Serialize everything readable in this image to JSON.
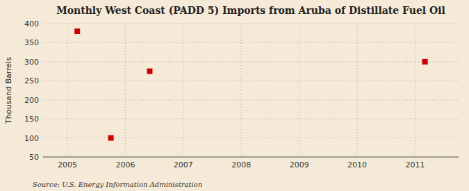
{
  "chart_data": {
    "type": "scatter",
    "title": "Monthly West Coast (PADD 5) Imports from Aruba of Distillate Fuel Oil",
    "y_label": "Thousand Barrels",
    "annotations": [
      "Source: U.S. Energy Information Administration"
    ],
    "x": [
      2005.17,
      2005.75,
      2006.42,
      2011.17
    ],
    "values": [
      380,
      100,
      275,
      300
    ],
    "color": "#cc0000",
    "marker": "square",
    "xlim": [
      2004.58,
      2011.75
    ],
    "ylim": [
      50,
      400
    ],
    "xticks": [
      2005,
      2006,
      2007,
      2008,
      2009,
      2010,
      2011
    ],
    "yticks": [
      50,
      100,
      150,
      200,
      250,
      300,
      350,
      400
    ],
    "grid": true
  }
}
